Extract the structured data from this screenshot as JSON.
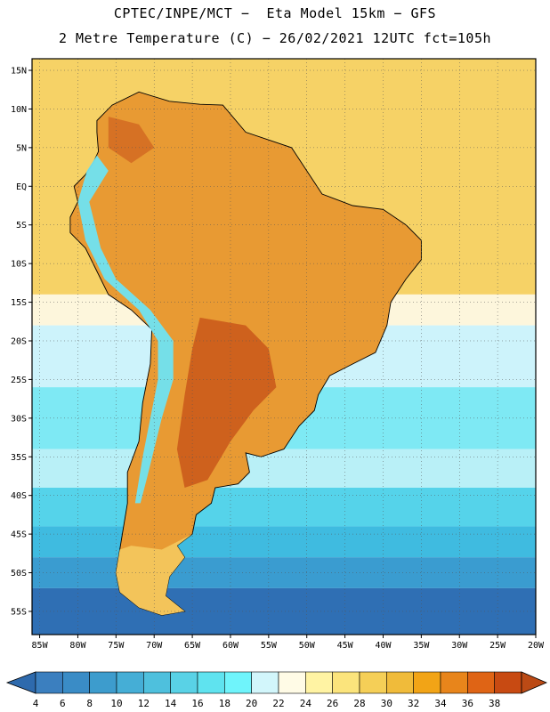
{
  "header": {
    "line1": "CPTEC/INPE/MCT −  Eta Model 15km − GFS",
    "line2": "2 Metre Temperature (C) − 26/02/2021 12UTC fct=105h"
  },
  "map": {
    "lat_ticks": [
      "15N",
      "10N",
      "5N",
      "EQ",
      "5S",
      "10S",
      "15S",
      "20S",
      "25S",
      "30S",
      "35S",
      "40S",
      "45S",
      "50S",
      "55S"
    ],
    "lon_ticks": [
      "85W",
      "80W",
      "75W",
      "70W",
      "65W",
      "60W",
      "55W",
      "50W",
      "45W",
      "40W",
      "35W",
      "30W",
      "25W",
      "20W"
    ],
    "lat_range": [
      -58,
      16.5
    ],
    "lon_range": [
      -86,
      -20
    ],
    "ocean_bands": [
      {
        "lat_from": 16.5,
        "lat_to": -14,
        "color": "#f6d266"
      },
      {
        "lat_from": -14,
        "lat_to": -18,
        "color": "#fdf6dc"
      },
      {
        "lat_from": -18,
        "lat_to": -26,
        "color": "#cdf3fb"
      },
      {
        "lat_from": -26,
        "lat_to": -34,
        "color": "#7ee9f4"
      },
      {
        "lat_from": -34,
        "lat_to": -39,
        "color": "#b9f0f7"
      },
      {
        "lat_from": -39,
        "lat_to": -44,
        "color": "#55d3ea"
      },
      {
        "lat_from": -44,
        "lat_to": -48,
        "color": "#3fbbe0"
      },
      {
        "lat_from": -48,
        "lat_to": -52,
        "color": "#3a9cd0"
      },
      {
        "lat_from": -52,
        "lat_to": -58,
        "color": "#2f6fb4"
      }
    ],
    "land_color": "#e89a33",
    "hot_color": "#c9571a",
    "andes_color": "#6fe3f2",
    "south_land_color": "#f3c45a"
  },
  "colorbar": {
    "labels": [
      "4",
      "6",
      "8",
      "10",
      "12",
      "14",
      "16",
      "18",
      "20",
      "22",
      "24",
      "26",
      "28",
      "30",
      "32",
      "34",
      "36",
      "38"
    ],
    "colors": [
      "#3b7fbf",
      "#3a8cc6",
      "#3d9ccd",
      "#45aed6",
      "#4ec0dd",
      "#59d2e6",
      "#5fe3ef",
      "#6ff4fb",
      "#d2f6fb",
      "#fffbe6",
      "#fff3a3",
      "#fbe47c",
      "#f5cf57",
      "#f0bb3a",
      "#f2a416",
      "#e8851b",
      "#df6415",
      "#c84a12"
    ],
    "low_end_color": "#2e6aad",
    "high_end_color": "#bb4a15"
  }
}
